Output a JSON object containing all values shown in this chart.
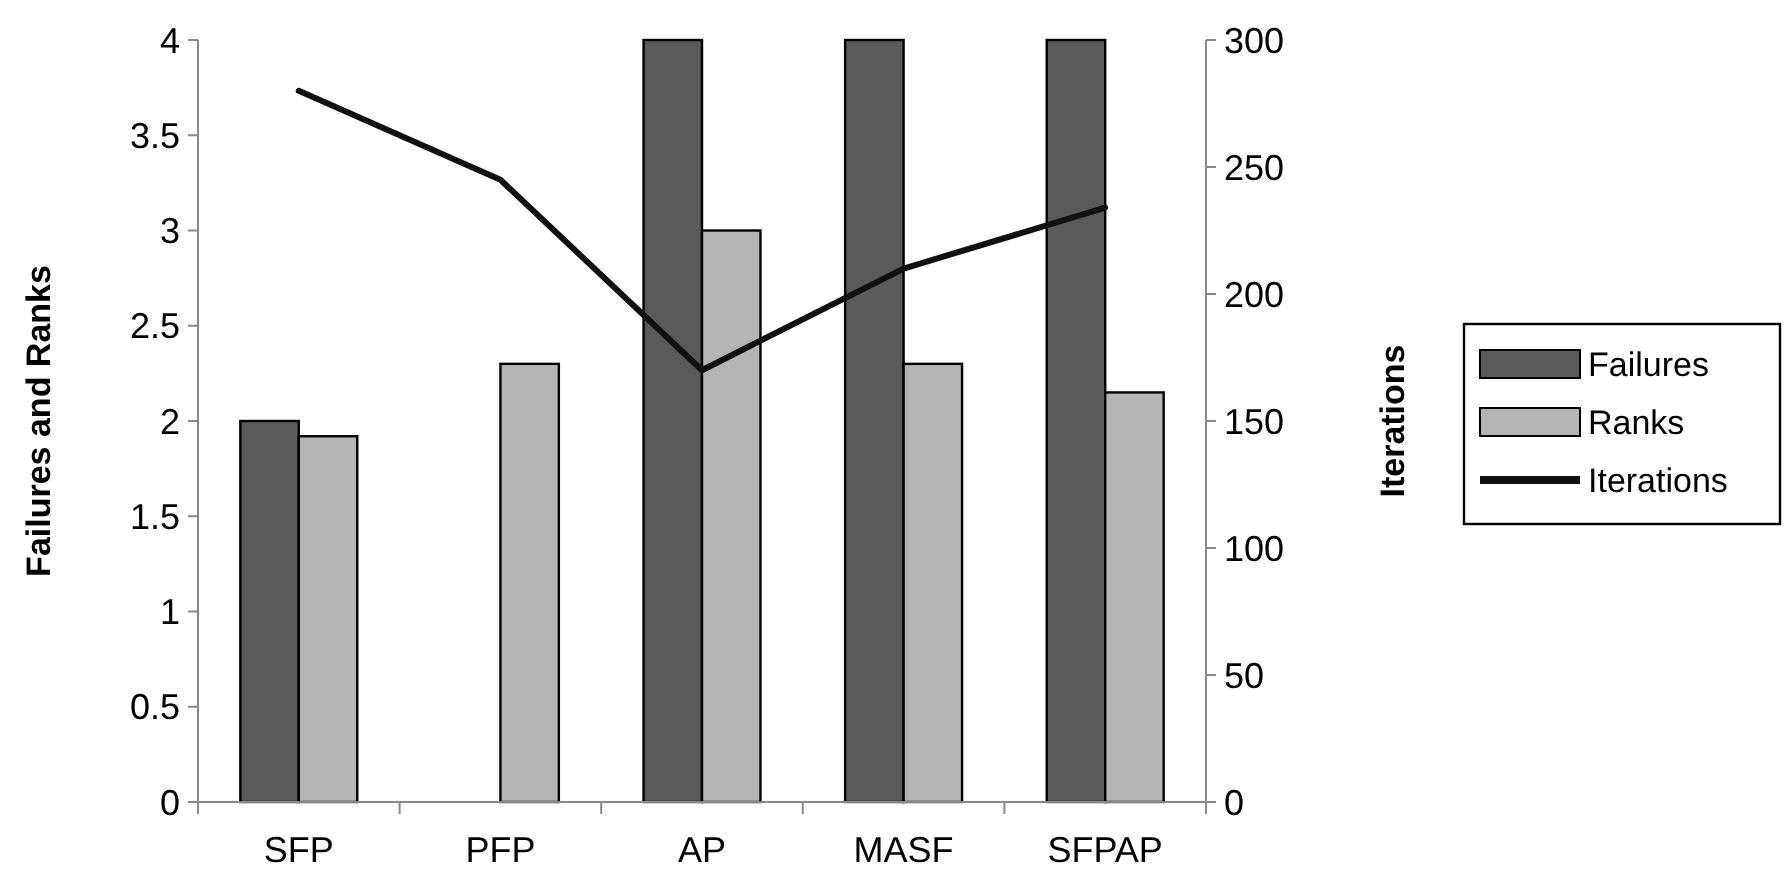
{
  "chart_data": {
    "type": "bar",
    "categories": [
      "SFP",
      "PFP",
      "AP",
      "MASF",
      "SFPAP"
    ],
    "ylabel": "Failures and Ranks",
    "y2label": "Iterations",
    "ylim": [
      0,
      4
    ],
    "yticks": [
      0,
      0.5,
      1,
      1.5,
      2,
      2.5,
      3,
      3.5,
      4
    ],
    "y2lim": [
      0,
      300
    ],
    "y2ticks": [
      0,
      50,
      100,
      150,
      200,
      250,
      300
    ],
    "legend": "right",
    "grid": false,
    "series": [
      {
        "name": "Failures",
        "color": "#5a5a5a",
        "values": [
          2,
          0,
          4,
          4,
          4
        ]
      },
      {
        "name": "Ranks",
        "color": "#b4b4b4",
        "values": [
          1.92,
          2.3,
          3.0,
          2.3,
          2.15
        ]
      },
      {
        "name": "Iterations",
        "type": "line",
        "axis": "y2",
        "color": "#111111",
        "values": [
          280,
          245,
          170,
          210,
          234
        ]
      }
    ]
  }
}
